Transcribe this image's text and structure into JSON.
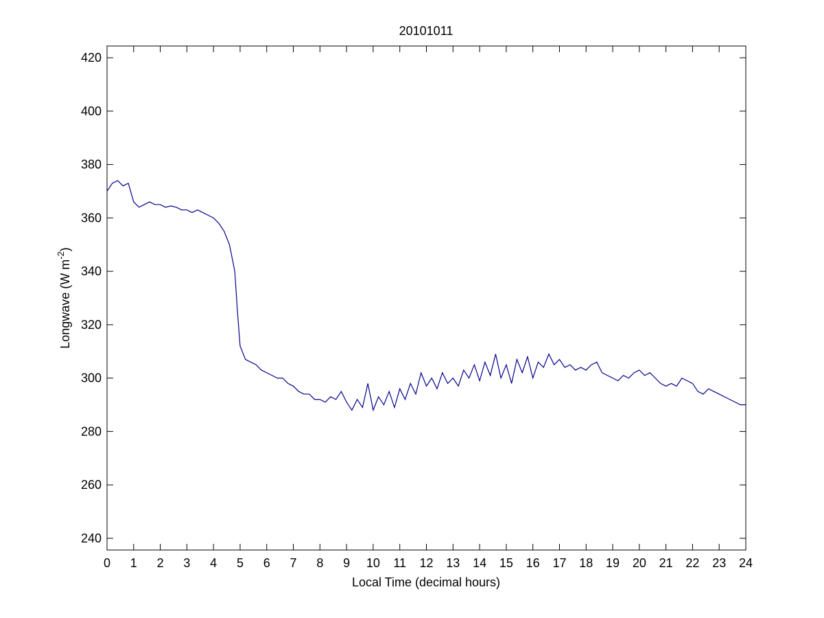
{
  "chart_data": {
    "type": "line",
    "title": "20101011",
    "x_label": "Local Time (decimal hours)",
    "y_label": [
      "Longwave (W m",
      "-2",
      ")"
    ],
    "x": [
      0,
      0.2,
      0.4,
      0.6,
      0.8,
      1.0,
      1.2,
      1.4,
      1.6,
      1.8,
      2.0,
      2.2,
      2.4,
      2.6,
      2.8,
      3.0,
      3.2,
      3.4,
      3.6,
      3.8,
      4.0,
      4.2,
      4.4,
      4.6,
      4.8,
      4.9,
      5.0,
      5.2,
      5.4,
      5.6,
      5.8,
      6.0,
      6.2,
      6.4,
      6.6,
      6.8,
      7.0,
      7.2,
      7.4,
      7.6,
      7.8,
      8.0,
      8.2,
      8.4,
      8.6,
      8.8,
      9.0,
      9.2,
      9.4,
      9.6,
      9.8,
      10.0,
      10.2,
      10.4,
      10.6,
      10.8,
      11.0,
      11.2,
      11.4,
      11.6,
      11.8,
      12.0,
      12.2,
      12.4,
      12.6,
      12.8,
      13.0,
      13.2,
      13.4,
      13.6,
      13.8,
      14.0,
      14.2,
      14.4,
      14.6,
      14.8,
      15.0,
      15.2,
      15.4,
      15.6,
      15.8,
      16.0,
      16.2,
      16.4,
      16.6,
      16.8,
      17.0,
      17.2,
      17.4,
      17.6,
      17.8,
      18.0,
      18.2,
      18.4,
      18.6,
      18.8,
      19.0,
      19.2,
      19.4,
      19.6,
      19.8,
      20.0,
      20.2,
      20.4,
      20.6,
      20.8,
      21.0,
      21.2,
      21.4,
      21.6,
      21.8,
      22.0,
      22.2,
      22.4,
      22.6,
      22.8,
      23.0,
      23.2,
      23.4,
      23.6,
      23.8,
      24.0
    ],
    "series": [
      {
        "name": "Longwave",
        "color": "#00008b",
        "values": [
          370,
          373,
          374,
          372,
          373,
          366,
          364,
          365,
          366,
          365,
          365,
          364,
          364.5,
          364,
          363,
          363,
          362,
          363,
          362,
          361,
          360,
          358,
          355,
          350,
          340,
          325,
          312,
          307,
          306,
          305,
          303,
          302,
          301,
          300,
          300,
          298,
          297,
          295,
          294,
          294,
          292,
          292,
          291,
          293,
          292,
          295,
          291,
          288,
          292,
          289,
          298,
          288,
          293,
          290,
          295,
          289,
          296,
          292,
          298,
          294,
          302,
          297,
          300,
          296,
          302,
          298,
          300,
          297,
          303,
          300,
          305,
          299,
          306,
          301,
          309,
          300,
          305,
          298,
          307,
          302,
          308,
          300,
          306,
          304,
          309,
          305,
          307,
          304,
          305,
          303,
          304,
          303,
          305,
          306,
          302,
          301,
          300,
          299,
          301,
          300,
          302,
          303,
          301,
          302,
          300,
          298,
          297,
          298,
          297,
          300,
          299,
          298,
          295,
          294,
          296,
          295,
          294,
          293,
          292,
          291,
          290,
          290
        ]
      }
    ],
    "xlim": [
      0,
      24
    ],
    "ylim": [
      235.6,
      424.4
    ],
    "xticks": [
      0,
      1,
      2,
      3,
      4,
      5,
      6,
      7,
      8,
      9,
      10,
      11,
      12,
      13,
      14,
      15,
      16,
      17,
      18,
      19,
      20,
      21,
      22,
      23,
      24
    ],
    "yticks": [
      240,
      260,
      280,
      300,
      320,
      340,
      360,
      380,
      400,
      420
    ],
    "grid": false
  }
}
